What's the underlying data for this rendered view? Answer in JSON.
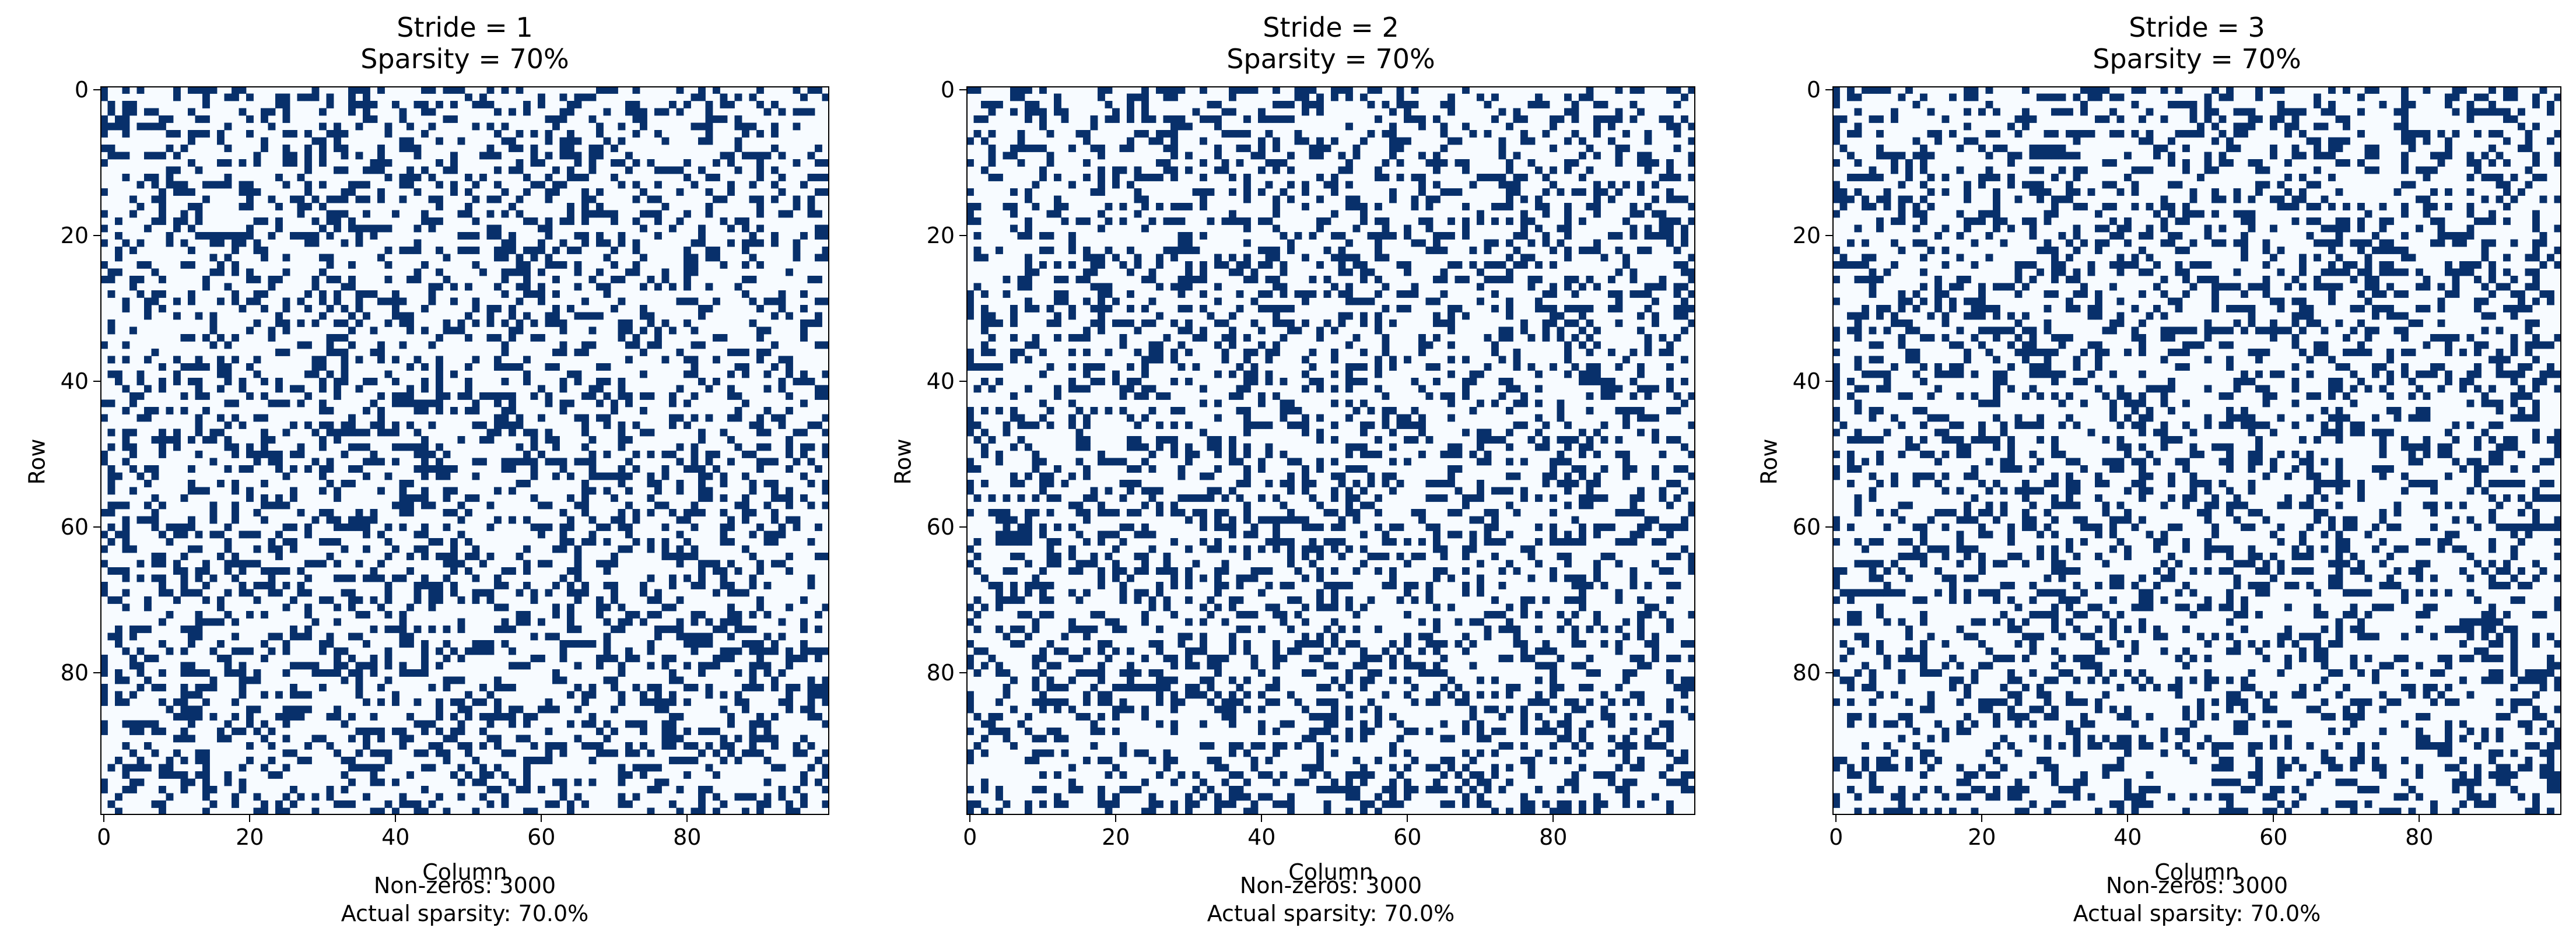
{
  "chart_data": [
    {
      "type": "heatmap",
      "title_lines": [
        "Stride = 1",
        "Sparsity = 70%"
      ],
      "stride": 1,
      "sparsity_target_percent": 70,
      "rows": 100,
      "cols": 100,
      "xlabel": "Column",
      "ylabel": "Row",
      "x_ticks": [
        0,
        20,
        40,
        60,
        80
      ],
      "y_ticks": [
        0,
        20,
        40,
        60,
        80
      ],
      "nonzeros_label": "Non-zeros: 3000",
      "actual_sparsity_label": "Actual sparsity: 70.0%",
      "nonzeros": 3000,
      "actual_sparsity_percent": 70.0
    },
    {
      "type": "heatmap",
      "title_lines": [
        "Stride = 2",
        "Sparsity = 70%"
      ],
      "stride": 2,
      "sparsity_target_percent": 70,
      "rows": 100,
      "cols": 100,
      "xlabel": "Column",
      "ylabel": "Row",
      "x_ticks": [
        0,
        20,
        40,
        60,
        80
      ],
      "y_ticks": [
        0,
        20,
        40,
        60,
        80
      ],
      "nonzeros_label": "Non-zeros: 3000",
      "actual_sparsity_label": "Actual sparsity: 70.0%",
      "nonzeros": 3000,
      "actual_sparsity_percent": 70.0
    },
    {
      "type": "heatmap",
      "title_lines": [
        "Stride = 3",
        "Sparsity = 70%"
      ],
      "stride": 3,
      "sparsity_target_percent": 70,
      "rows": 100,
      "cols": 100,
      "xlabel": "Column",
      "ylabel": "Row",
      "x_ticks": [
        0,
        20,
        40,
        60,
        80
      ],
      "y_ticks": [
        0,
        20,
        40,
        60,
        80
      ],
      "nonzeros_label": "Non-zeros: 3000",
      "actual_sparsity_label": "Actual sparsity: 70.0%",
      "nonzeros": 3000,
      "actual_sparsity_percent": 70.0
    }
  ],
  "colors": {
    "nonzero": "#08306b",
    "zero": "#f7fbff",
    "axis": "#000000"
  }
}
